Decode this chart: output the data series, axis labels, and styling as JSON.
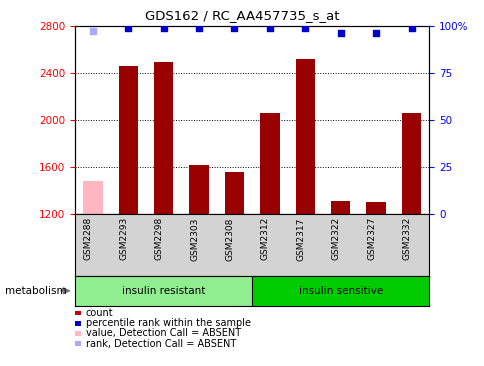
{
  "title": "GDS162 / RC_AA457735_s_at",
  "samples": [
    "GSM2288",
    "GSM2293",
    "GSM2298",
    "GSM2303",
    "GSM2308",
    "GSM2312",
    "GSM2317",
    "GSM2322",
    "GSM2327",
    "GSM2332"
  ],
  "bar_values": [
    1480,
    2460,
    2490,
    1620,
    1560,
    2060,
    2520,
    1310,
    1300,
    2060
  ],
  "bar_colors": [
    "#ffb6c1",
    "#990000",
    "#990000",
    "#990000",
    "#990000",
    "#990000",
    "#990000",
    "#990000",
    "#990000",
    "#990000"
  ],
  "rank_values": [
    97,
    99,
    99,
    99,
    99,
    99,
    99,
    96,
    96,
    99
  ],
  "rank_colors": [
    "#aaaaff",
    "#0000cc",
    "#0000cc",
    "#0000cc",
    "#0000cc",
    "#0000cc",
    "#0000cc",
    "#0000cc",
    "#0000cc",
    "#0000cc"
  ],
  "ylim_left": [
    1200,
    2800
  ],
  "ylim_right": [
    0,
    100
  ],
  "yticks_left": [
    1200,
    1600,
    2000,
    2400,
    2800
  ],
  "yticks_right": [
    0,
    25,
    50,
    75,
    100
  ],
  "ytick_labels_right": [
    "0",
    "25",
    "50",
    "75",
    "100%"
  ],
  "group1_label": "insulin resistant",
  "group2_label": "insulin sensitive",
  "group1_count": 5,
  "group2_count": 5,
  "metabolism_label": "metabolism",
  "legend_items": [
    {
      "label": "count",
      "color": "#cc0000"
    },
    {
      "label": "percentile rank within the sample",
      "color": "#0000cc"
    },
    {
      "label": "value, Detection Call = ABSENT",
      "color": "#ffb6c1"
    },
    {
      "label": "rank, Detection Call = ABSENT",
      "color": "#aaaaff"
    }
  ],
  "bar_width": 0.55,
  "group1_color": "#90ee90",
  "group2_color": "#00cc00",
  "xtick_bg_color": "#d3d3d3"
}
